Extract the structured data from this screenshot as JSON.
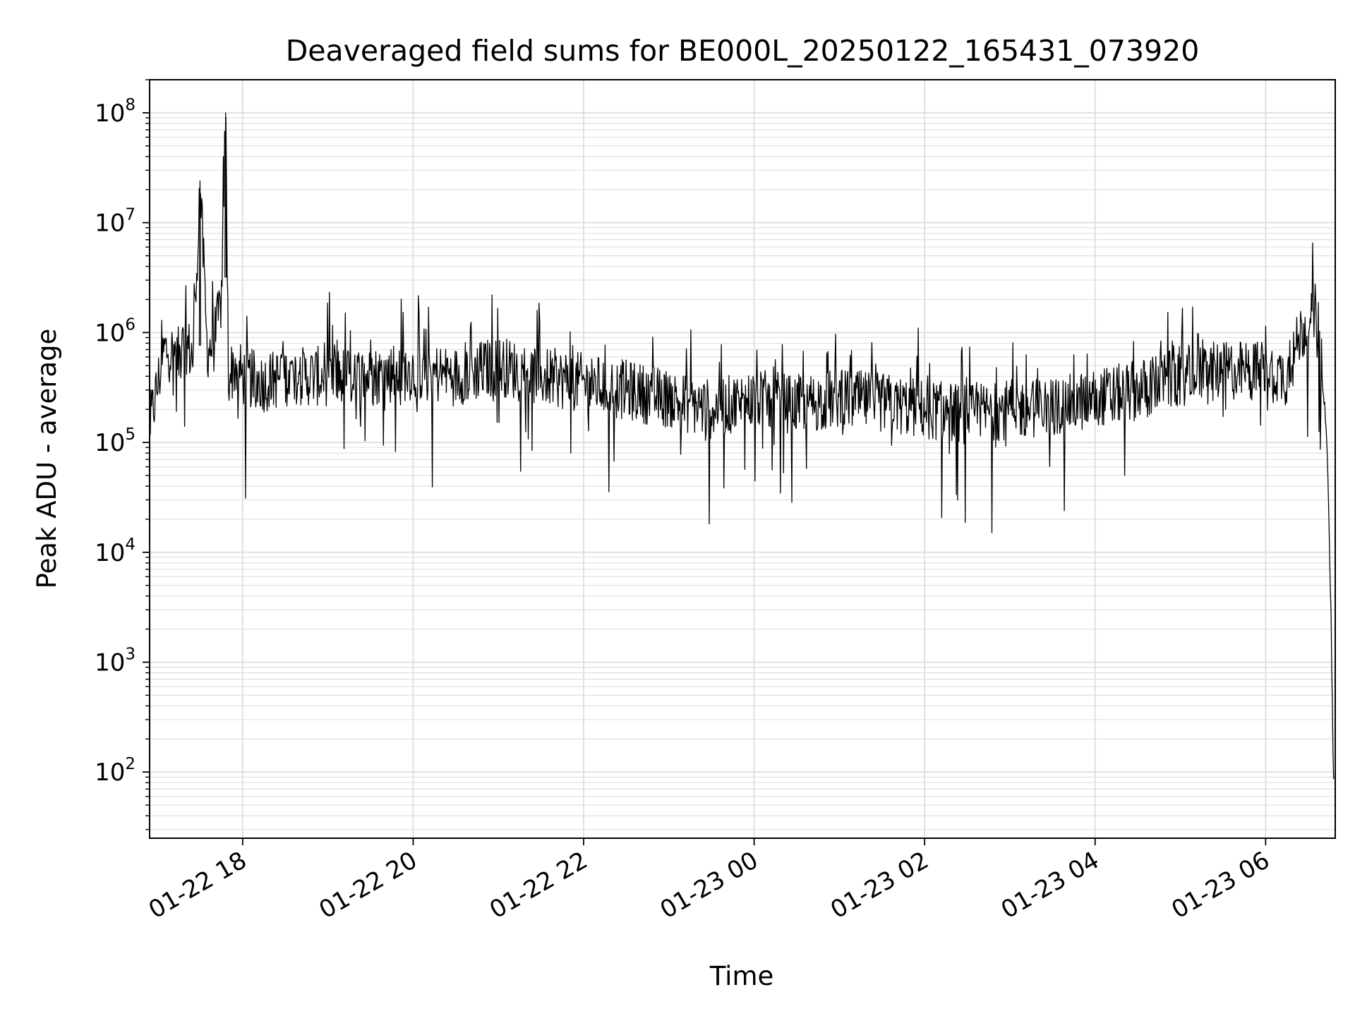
{
  "chart_data": {
    "type": "line",
    "title": "Deaveraged field sums for BE000L_20250122_165431_073920",
    "xlabel": "Time",
    "ylabel": "Peak ADU - average",
    "yscale": "log",
    "ylim": [
      25,
      200000000
    ],
    "xlim": [
      "2025-01-22 16:54:31",
      "2025-01-23 06:49:00"
    ],
    "grid": true,
    "grid_minor": true,
    "line_color": "#000000",
    "grid_color": "#e0e0e0",
    "x_ticks": [
      {
        "value": "2025-01-22 18:00",
        "label": "01-22 18"
      },
      {
        "value": "2025-01-22 20:00",
        "label": "01-22 20"
      },
      {
        "value": "2025-01-22 22:00",
        "label": "01-22 22"
      },
      {
        "value": "2025-01-23 00:00",
        "label": "01-23 00"
      },
      {
        "value": "2025-01-23 02:00",
        "label": "01-23 02"
      },
      {
        "value": "2025-01-23 04:00",
        "label": "01-23 04"
      },
      {
        "value": "2025-01-23 06:00",
        "label": "01-23 06"
      }
    ],
    "y_ticks": [
      {
        "value": 100,
        "base": "10",
        "exp": "2"
      },
      {
        "value": 1000,
        "base": "10",
        "exp": "3"
      },
      {
        "value": 10000,
        "base": "10",
        "exp": "4"
      },
      {
        "value": 100000,
        "base": "10",
        "exp": "5"
      },
      {
        "value": 1000000,
        "base": "10",
        "exp": "6"
      },
      {
        "value": 10000000,
        "base": "10",
        "exp": "7"
      },
      {
        "value": 100000000,
        "base": "10",
        "exp": "8"
      }
    ],
    "series": [
      {
        "x": [
          "2025-01-22 16:55",
          "2025-01-22 17:05",
          "2025-01-22 17:15",
          "2025-01-22 17:20",
          "2025-01-22 17:25",
          "2025-01-22 17:30",
          "2025-01-22 17:35",
          "2025-01-22 17:40",
          "2025-01-22 17:45",
          "2025-01-22 17:48",
          "2025-01-22 17:50",
          "2025-01-22 17:55",
          "2025-01-22 18:00",
          "2025-01-22 18:15",
          "2025-01-22 18:30",
          "2025-01-22 19:00",
          "2025-01-22 19:30",
          "2025-01-22 20:00",
          "2025-01-22 20:30",
          "2025-01-22 21:00",
          "2025-01-22 21:30",
          "2025-01-22 22:00",
          "2025-01-22 22:30",
          "2025-01-22 23:00",
          "2025-01-22 23:30",
          "2025-01-23 00:00",
          "2025-01-23 00:30",
          "2025-01-23 01:00",
          "2025-01-23 01:30",
          "2025-01-23 02:00",
          "2025-01-23 02:30",
          "2025-01-23 03:00",
          "2025-01-23 03:30",
          "2025-01-23 04:00",
          "2025-01-23 04:30",
          "2025-01-23 05:00",
          "2025-01-23 05:30",
          "2025-01-23 06:00",
          "2025-01-23 06:15",
          "2025-01-23 06:25",
          "2025-01-23 06:35",
          "2025-01-23 06:40",
          "2025-01-23 06:44",
          "2025-01-23 06:46",
          "2025-01-23 06:48"
        ],
        "values": [
          150000,
          700000,
          600000,
          800000,
          600000,
          24000000,
          700000,
          800000,
          2000000,
          100000000,
          400000,
          500000,
          400000,
          350000,
          400000,
          400000,
          400000,
          450000,
          400000,
          500000,
          400000,
          350000,
          300000,
          250000,
          200000,
          250000,
          220000,
          250000,
          230000,
          200000,
          180000,
          200000,
          210000,
          250000,
          300000,
          400000,
          450000,
          450000,
          400000,
          1000000,
          1500000,
          400000,
          50000,
          3000,
          60
        ]
      }
    ]
  }
}
